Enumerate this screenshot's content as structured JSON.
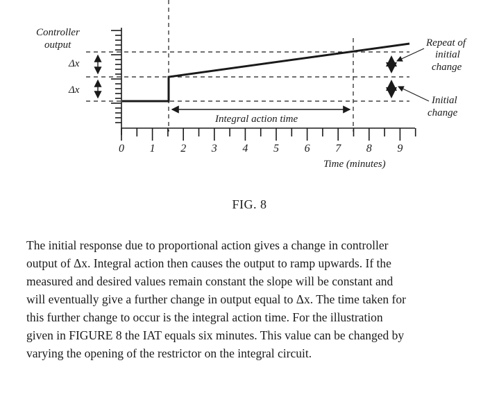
{
  "figure": {
    "labels": {
      "controller_output_line1": "Controller",
      "controller_output_line2": "output",
      "delta_x_upper": "Δx",
      "delta_x_lower": "Δx",
      "integral_action_time": "Integral action time",
      "repeat_line1": "Repeat of",
      "repeat_line2": "initial",
      "repeat_line3": "change",
      "initial_line1": "Initial",
      "initial_line2": "change",
      "time_axis": "Time (minutes)"
    },
    "x_ticks": [
      "0",
      "1",
      "2",
      "3",
      "4",
      "5",
      "6",
      "7",
      "8",
      "9"
    ],
    "caption": "FIG. 8"
  },
  "text": {
    "lines": [
      "The initial response due to proportional action gives a change in controller",
      "output of Δx.  Integral action then causes the output to ramp upwards.  If the",
      "measured and desired values remain constant the slope will be constant and",
      "will eventually give a further change in output equal to Δx.  The time taken for",
      "this further change to occur is the integral action time.  For the illustration",
      "given in FIGURE 8 the IAT equals six minutes.  This value can be changed by",
      "varying the opening of the restrictor on the integral circuit."
    ]
  }
}
